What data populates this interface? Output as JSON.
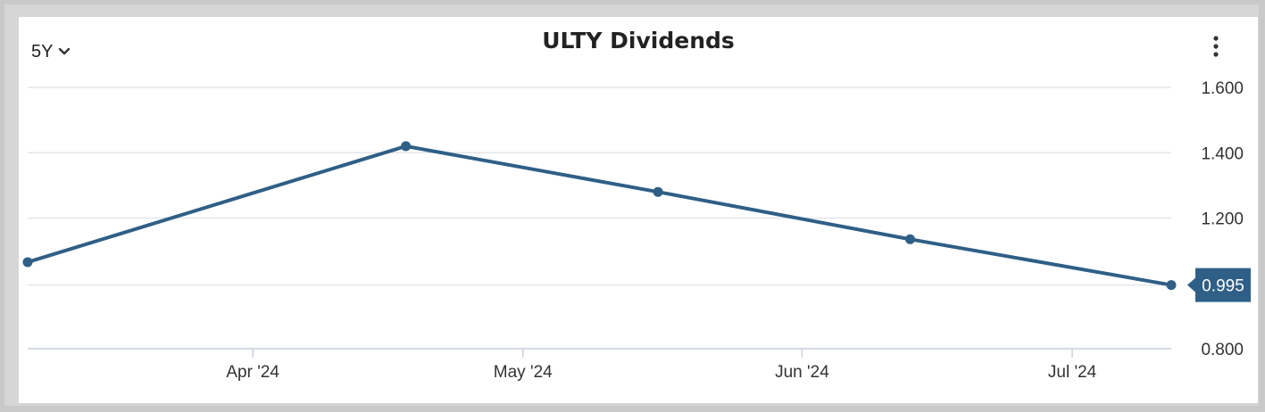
{
  "range_selector": {
    "label": "5Y"
  },
  "icons": {
    "range_dropdown": "chevron-down-icon",
    "menu": "more-vertical-icon"
  },
  "colors": {
    "series": "#2f5f86",
    "grid": "#e2e5ea",
    "axis": "#c8d1dc"
  },
  "chart_data": {
    "type": "line",
    "title": "ULTY Dividends",
    "xlabel": "",
    "ylabel": "",
    "x": [
      "2024-03-07",
      "2024-04-18",
      "2024-05-16",
      "2024-06-13",
      "2024-07-12"
    ],
    "series": [
      {
        "values": [
          1.065,
          1.42,
          1.28,
          1.135,
          0.995
        ]
      }
    ],
    "ylim": [
      0.8,
      1.6
    ],
    "y_ticks": [
      "0.800",
      "0.995",
      "1.200",
      "1.400",
      "1.600"
    ],
    "x_ticks": [
      {
        "date": "2024-04-01",
        "label": "Apr '24"
      },
      {
        "date": "2024-05-01",
        "label": "May '24"
      },
      {
        "date": "2024-06-01",
        "label": "Jun '24"
      },
      {
        "date": "2024-07-01",
        "label": "Jul '24"
      }
    ],
    "last_value_label": "0.995",
    "grid": true,
    "legend": "none"
  }
}
